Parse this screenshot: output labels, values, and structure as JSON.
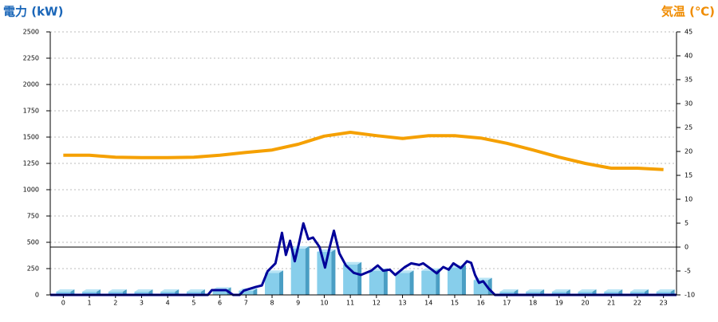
{
  "chart_data": {
    "type": "bar",
    "y_title": "電力 (kW)",
    "y2_title": "気温 (℃)",
    "categories": [
      "0",
      "1",
      "2",
      "3",
      "4",
      "5",
      "6",
      "7",
      "8",
      "9",
      "10",
      "11",
      "12",
      "13",
      "14",
      "15",
      "16",
      "17",
      "18",
      "19",
      "20",
      "21",
      "22",
      "23"
    ],
    "xlim": [
      -0.5,
      23.5
    ],
    "ylim": [
      0,
      2500
    ],
    "yticks": [
      0,
      250,
      500,
      750,
      1000,
      1250,
      1500,
      1750,
      2000,
      2250,
      2500
    ],
    "y2lim": [
      -10,
      45
    ],
    "y2ticks": [
      -10,
      -5,
      0,
      5,
      10,
      15,
      20,
      25,
      30,
      35,
      40,
      45
    ],
    "grid": true,
    "series": [
      {
        "type": "bar",
        "color": "#87ceeb",
        "values": [
          30,
          30,
          30,
          30,
          30,
          30,
          50,
          40,
          210,
          440,
          410,
          290,
          230,
          210,
          230,
          260,
          140,
          30,
          30,
          30,
          30,
          30,
          30,
          30
        ]
      },
      {
        "type": "line",
        "color": "#000099",
        "x": [
          -0.5,
          5.54,
          5.69,
          6.24,
          6.51,
          6.76,
          6.91,
          7.37,
          7.61,
          7.83,
          8.13,
          8.38,
          8.53,
          8.69,
          8.87,
          9.05,
          9.2,
          9.39,
          9.57,
          9.82,
          10.03,
          10.21,
          10.37,
          10.58,
          10.83,
          11.13,
          11.41,
          11.8,
          12.05,
          12.26,
          12.51,
          12.72,
          13.09,
          13.33,
          13.64,
          13.79,
          14.1,
          14.31,
          14.56,
          14.77,
          14.95,
          15.23,
          15.47,
          15.63,
          15.78,
          15.93,
          16.09,
          16.3,
          16.54,
          23.5
        ],
        "values": [
          0,
          0,
          45,
          45,
          0,
          0,
          40,
          75,
          90,
          225,
          300,
          590,
          380,
          515,
          320,
          510,
          680,
          530,
          545,
          455,
          260,
          455,
          610,
          395,
          280,
          210,
          190,
          230,
          280,
          230,
          240,
          190,
          265,
          300,
          285,
          300,
          245,
          205,
          265,
          240,
          300,
          255,
          320,
          305,
          190,
          115,
          130,
          60,
          0,
          0
        ]
      },
      {
        "type": "line",
        "axis": "y2",
        "color": "#f5a000",
        "values": [
          19.2,
          19.2,
          18.8,
          18.7,
          18.7,
          18.8,
          19.2,
          19.8,
          20.3,
          21.5,
          23.2,
          24.0,
          23.3,
          22.7,
          23.3,
          23.3,
          22.8,
          21.7,
          20.3,
          18.8,
          17.5,
          16.5,
          16.5,
          16.2
        ]
      }
    ]
  }
}
